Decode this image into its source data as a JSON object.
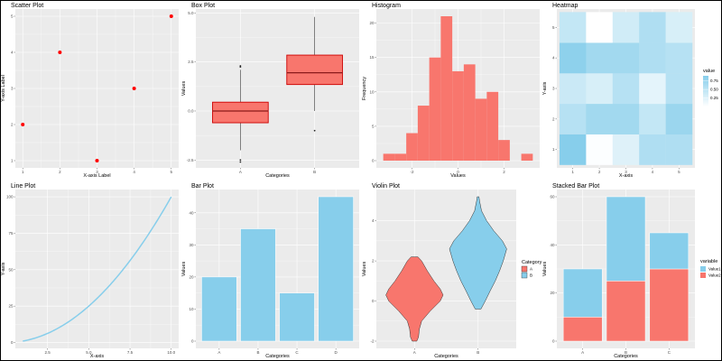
{
  "colors": {
    "panel_bg": "#EBEBEB",
    "grid": "#FFFFFF",
    "salmon": "#F8766D",
    "skyblue": "#87CEEB",
    "red": "#FF0000",
    "box_border": "#CC0000"
  },
  "chart_data": [
    {
      "type": "scatter",
      "title": "Scatter Plot",
      "xlabel": "X-axis Label",
      "ylabel": "Y-axis Label",
      "x": [
        1,
        2,
        3,
        4,
        5
      ],
      "y": [
        2,
        4,
        1,
        3,
        5
      ],
      "xlim": [
        0.8,
        5.2
      ],
      "ylim": [
        0.8,
        5.2
      ],
      "xticks": [
        "1",
        "2",
        "3",
        "4",
        "5"
      ],
      "yticks": [
        "1",
        "2",
        "3",
        "4",
        "5"
      ],
      "grid": true,
      "point_color": "#FF0000"
    },
    {
      "type": "box",
      "title": "Box Plot",
      "xlabel": "Categories",
      "ylabel": "Values",
      "categories": [
        "A",
        "B"
      ],
      "ylim": [
        -2.9,
        5.2
      ],
      "yticks": [
        "-2.5",
        "0.0",
        "2.5",
        "5.0"
      ],
      "grid": true,
      "boxes": [
        {
          "q1": -0.6,
          "median": 0.0,
          "q3": 0.45,
          "whisker_low": -2.0,
          "whisker_high": 2.1,
          "outliers": [
            2.3,
            2.25,
            -2.5,
            -2.6
          ]
        },
        {
          "q1": 1.35,
          "median": 1.95,
          "q3": 2.85,
          "whisker_low": 0.0,
          "whisker_high": 4.8,
          "outliers": [
            -1.0
          ]
        }
      ]
    },
    {
      "type": "bar",
      "subtype": "histogram",
      "title": "Histogram",
      "xlabel": "Values",
      "ylabel": "Frequency",
      "bin_edges": [
        -3.25,
        -2.75,
        -2.25,
        -1.75,
        -1.25,
        -0.75,
        -0.25,
        0.25,
        0.75,
        1.25,
        1.75,
        2.25,
        2.75,
        3.25
      ],
      "counts": [
        1,
        1,
        4,
        8,
        15,
        21,
        13,
        14,
        9,
        10,
        3,
        0,
        1
      ],
      "xlim": [
        -3.55,
        3.55
      ],
      "ylim": [
        -1.05,
        22.05
      ],
      "xticks": [
        "-2",
        "0",
        "2"
      ],
      "yticks": [
        "0",
        "5",
        "10",
        "15",
        "20"
      ],
      "grid": true
    },
    {
      "type": "heatmap",
      "title": "Heatmap",
      "xlabel": "X-axis",
      "ylabel": "Y-axis",
      "x": [
        1,
        2,
        3,
        4,
        5
      ],
      "y": [
        1,
        2,
        3,
        4,
        5
      ],
      "values": [
        [
          0.9,
          0.02,
          0.25,
          0.6,
          0.6
        ],
        [
          0.55,
          0.7,
          0.7,
          0.45,
          0.75
        ],
        [
          0.4,
          0.3,
          0.55,
          0.2,
          0.55
        ],
        [
          0.85,
          0.7,
          0.7,
          0.6,
          0.55
        ],
        [
          0.45,
          0.0,
          0.35,
          0.6,
          0.3
        ]
      ],
      "xlim": [
        0.4,
        5.6
      ],
      "ylim": [
        0.4,
        5.6
      ],
      "xticks": [
        "1",
        "2",
        "3",
        "4",
        "5"
      ],
      "yticks": [
        "1",
        "2",
        "3",
        "4",
        "5"
      ],
      "legend": {
        "title": "value",
        "labels": [
          "0.25",
          "0.50",
          "0.75"
        ],
        "position": "right"
      },
      "low_color": "#FFFFFF",
      "high_color": "#87CEEB"
    },
    {
      "type": "line",
      "title": "Line Plot",
      "xlabel": "X-axis",
      "ylabel": "Y-axis",
      "x": [
        1,
        2,
        3,
        4,
        5,
        6,
        7,
        8,
        9,
        10
      ],
      "y": [
        1,
        4,
        9,
        16,
        25,
        36,
        49,
        64,
        81,
        100
      ],
      "xlim": [
        0.55,
        10.45
      ],
      "ylim": [
        -4,
        105
      ],
      "xticks": [
        "2.5",
        "5.0",
        "7.5",
        "10.0"
      ],
      "yticks": [
        "0",
        "25",
        "50",
        "75",
        "100"
      ],
      "grid": true,
      "line_color": "#87CEEB"
    },
    {
      "type": "bar",
      "title": "Bar Plot",
      "xlabel": "Categories",
      "ylabel": "Values",
      "categories": [
        "A",
        "B",
        "C",
        "D"
      ],
      "values": [
        20,
        35,
        15,
        45
      ],
      "ylim": [
        -2.25,
        47.25
      ],
      "yticks": [
        "0",
        "10",
        "20",
        "30",
        "40"
      ],
      "grid": true,
      "bar_color": "#87CEEB"
    },
    {
      "type": "violin",
      "title": "Violin Plot",
      "xlabel": "Categories",
      "ylabel": "Values",
      "categories": [
        "A",
        "B"
      ],
      "ylim": [
        -2.36,
        5.56
      ],
      "yticks": [
        "-2",
        "0",
        "2",
        "4"
      ],
      "grid": true,
      "profiles": [
        {
          "name": "A",
          "points": [
            [
              -2.0,
              0.08
            ],
            [
              -1.8,
              0.14
            ],
            [
              -1.4,
              0.17
            ],
            [
              -1.0,
              0.25
            ],
            [
              -0.5,
              0.55
            ],
            [
              0.0,
              0.9
            ],
            [
              0.3,
              1.0
            ],
            [
              0.6,
              0.9
            ],
            [
              1.0,
              0.68
            ],
            [
              1.5,
              0.45
            ],
            [
              2.0,
              0.25
            ],
            [
              2.2,
              0.12
            ]
          ]
        },
        {
          "name": "B",
          "points": [
            [
              -0.4,
              0.1
            ],
            [
              0.0,
              0.25
            ],
            [
              0.5,
              0.42
            ],
            [
              1.0,
              0.6
            ],
            [
              1.5,
              0.75
            ],
            [
              2.0,
              0.88
            ],
            [
              2.6,
              1.0
            ],
            [
              3.0,
              0.85
            ],
            [
              3.5,
              0.55
            ],
            [
              4.0,
              0.3
            ],
            [
              4.5,
              0.12
            ],
            [
              5.0,
              0.05
            ],
            [
              5.2,
              0.03
            ]
          ]
        }
      ],
      "legend": {
        "title": "Category",
        "labels": [
          "A",
          "B"
        ],
        "position": "right"
      }
    },
    {
      "type": "bar",
      "subtype": "stacked",
      "title": "Stacked Bar Plot",
      "xlabel": "Categories",
      "ylabel": "Values",
      "categories": [
        "A",
        "B",
        "C"
      ],
      "series": [
        {
          "name": "Value2",
          "values": [
            10,
            25,
            30
          ]
        },
        {
          "name": "Value1",
          "values": [
            20,
            35,
            15
          ]
        }
      ],
      "ylim": [
        -3,
        63
      ],
      "yticks": [
        "0",
        "20",
        "40",
        "60"
      ],
      "grid": true,
      "legend": {
        "title": "variable",
        "labels": [
          "Value1",
          "Value2"
        ],
        "position": "right"
      }
    }
  ]
}
